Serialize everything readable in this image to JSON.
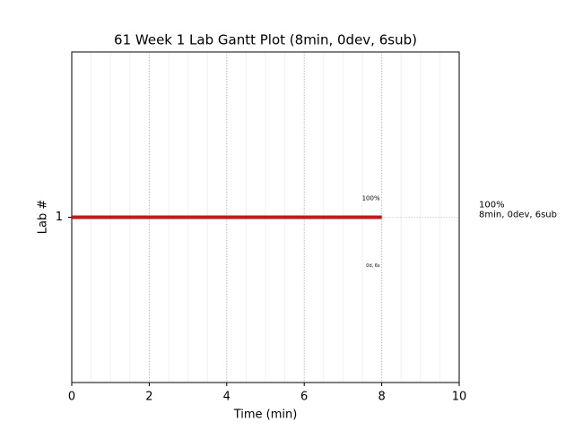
{
  "chart_data": {
    "type": "gantt",
    "title": "61 Week 1 Lab Gantt Plot (8min, 0dev, 6sub)",
    "xlabel": "Time (min)",
    "ylabel": "Lab #",
    "categories": [
      "1"
    ],
    "values": [
      8
    ],
    "color": "#c0181b",
    "bar_labels": [
      "100%"
    ],
    "sub_labels": [
      "0d, 6s"
    ],
    "side_labels": [
      [
        "100%",
        "8min, 0dev, 6sub"
      ]
    ],
    "xlim": [
      0,
      10
    ],
    "xticks": [
      0,
      2,
      4,
      6,
      8,
      10
    ],
    "minor_grid_step": 0.5,
    "grid": true
  }
}
